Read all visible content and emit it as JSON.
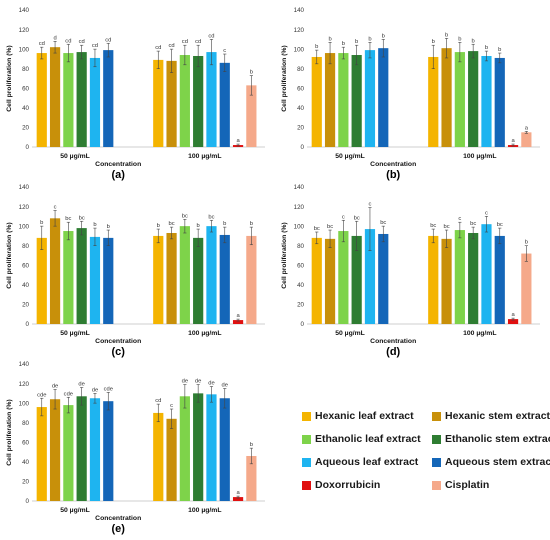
{
  "series": [
    {
      "name": "Hexanic leaf extract",
      "color": "#F4B400"
    },
    {
      "name": "Hexanic stem extract",
      "color": "#C8900A"
    },
    {
      "name": "Ethanolic leaf extract",
      "color": "#7ED34A"
    },
    {
      "name": "Ethanolic stem extract",
      "color": "#2E7D32"
    },
    {
      "name": "Aqueous leaf extract",
      "color": "#1EB4F0"
    },
    {
      "name": "Aqueous stem extract",
      "color": "#1466B8"
    },
    {
      "name": "Doxorrubicin",
      "color": "#E01010"
    },
    {
      "name": "Cisplatin",
      "color": "#F5A98A"
    }
  ],
  "chart_data": [
    {
      "type": "bar",
      "panel_label": "(a)",
      "xlabel": "Concentration",
      "ylabel": "Cell proliferation (%)",
      "ylim": [
        0,
        140
      ],
      "yticks": [
        0,
        20,
        40,
        60,
        80,
        100,
        120,
        140
      ],
      "grid": false,
      "categories": [
        "50 µg/mL",
        "100 µg/mL"
      ],
      "series": [
        {
          "name": "Hexanic leaf extract",
          "values": [
            96,
            89
          ],
          "errors": [
            6,
            9
          ],
          "letters": [
            "cd",
            "cd"
          ]
        },
        {
          "name": "Hexanic stem extract",
          "values": [
            102,
            88
          ],
          "errors": [
            6,
            12
          ],
          "letters": [
            "d",
            "cd"
          ]
        },
        {
          "name": "Ethanolic leaf extract",
          "values": [
            96,
            94
          ],
          "errors": [
            9,
            10
          ],
          "letters": [
            "cd",
            "cd"
          ]
        },
        {
          "name": "Ethanolic stem extract",
          "values": [
            97,
            93
          ],
          "errors": [
            7,
            11
          ],
          "letters": [
            "cd",
            "cd"
          ]
        },
        {
          "name": "Aqueous leaf extract",
          "values": [
            91,
            97
          ],
          "errors": [
            9,
            13
          ],
          "letters": [
            "cd",
            "cd"
          ]
        },
        {
          "name": "Aqueous stem extract",
          "values": [
            99,
            86
          ],
          "errors": [
            7,
            9
          ],
          "letters": [
            "cd",
            "c"
          ]
        },
        {
          "name": "Doxorrubicin",
          "values": [
            null,
            2
          ],
          "errors": [
            null,
            1
          ],
          "letters": [
            "",
            "a"
          ]
        },
        {
          "name": "Cisplatin",
          "values": [
            null,
            63
          ],
          "errors": [
            null,
            10
          ],
          "letters": [
            "",
            "b"
          ]
        }
      ]
    },
    {
      "type": "bar",
      "panel_label": "(b)",
      "xlabel": "Concentration",
      "ylabel": "Cell proliferation (%)",
      "ylim": [
        0,
        140
      ],
      "yticks": [
        0,
        20,
        40,
        60,
        80,
        100,
        120,
        140
      ],
      "grid": false,
      "categories": [
        "50 µg/mL",
        "100 µg/mL"
      ],
      "series": [
        {
          "name": "Hexanic leaf extract",
          "values": [
            92,
            92
          ],
          "errors": [
            7,
            12
          ],
          "letters": [
            "b",
            "b"
          ]
        },
        {
          "name": "Hexanic stem extract",
          "values": [
            96,
            101
          ],
          "errors": [
            11,
            10
          ],
          "letters": [
            "b",
            "b"
          ]
        },
        {
          "name": "Ethanolic leaf extract",
          "values": [
            96,
            97
          ],
          "errors": [
            6,
            10
          ],
          "letters": [
            "b",
            "b"
          ]
        },
        {
          "name": "Ethanolic stem extract",
          "values": [
            94,
            98
          ],
          "errors": [
            10,
            7
          ],
          "letters": [
            "b",
            "b"
          ]
        },
        {
          "name": "Aqueous leaf extract",
          "values": [
            99,
            93
          ],
          "errors": [
            8,
            5
          ],
          "letters": [
            "b",
            "b"
          ]
        },
        {
          "name": "Aqueous stem extract",
          "values": [
            101,
            91
          ],
          "errors": [
            9,
            5
          ],
          "letters": [
            "b",
            "b"
          ]
        },
        {
          "name": "Doxorrubicin",
          "values": [
            null,
            2
          ],
          "errors": [
            null,
            1
          ],
          "letters": [
            "",
            "a"
          ]
        },
        {
          "name": "Cisplatin",
          "values": [
            null,
            15
          ],
          "errors": [
            null,
            1
          ],
          "letters": [
            "",
            "a"
          ]
        }
      ]
    },
    {
      "type": "bar",
      "panel_label": "(c)",
      "xlabel": "Concentration",
      "ylabel": "Cell proliferation (%)",
      "ylim": [
        0,
        140
      ],
      "yticks": [
        0,
        20,
        40,
        60,
        80,
        100,
        120,
        140
      ],
      "grid": false,
      "categories": [
        "50 µg/mL",
        "100 µg/mL"
      ],
      "series": [
        {
          "name": "Hexanic leaf extract",
          "values": [
            88,
            90
          ],
          "errors": [
            12,
            7
          ],
          "letters": [
            "b",
            "b"
          ]
        },
        {
          "name": "Hexanic stem extract",
          "values": [
            108,
            93
          ],
          "errors": [
            8,
            6
          ],
          "letters": [
            "c",
            "bc"
          ]
        },
        {
          "name": "Ethanolic leaf extract",
          "values": [
            95,
            100
          ],
          "errors": [
            9,
            7
          ],
          "letters": [
            "bc",
            "bc"
          ]
        },
        {
          "name": "Ethanolic stem extract",
          "values": [
            98,
            88
          ],
          "errors": [
            7,
            9
          ],
          "letters": [
            "bc",
            "b"
          ]
        },
        {
          "name": "Aqueous leaf extract",
          "values": [
            89,
            100
          ],
          "errors": [
            9,
            6
          ],
          "letters": [
            "b",
            "bc"
          ]
        },
        {
          "name": "Aqueous stem extract",
          "values": [
            88,
            91
          ],
          "errors": [
            8,
            8
          ],
          "letters": [
            "b",
            "b"
          ]
        },
        {
          "name": "Doxorrubicin",
          "values": [
            null,
            4
          ],
          "errors": [
            null,
            1
          ],
          "letters": [
            "",
            "a"
          ]
        },
        {
          "name": "Cisplatin",
          "values": [
            null,
            90
          ],
          "errors": [
            null,
            9
          ],
          "letters": [
            "",
            "b"
          ]
        }
      ]
    },
    {
      "type": "bar",
      "panel_label": "(d)",
      "xlabel": "Concentration",
      "ylabel": "Cell proliferation (%)",
      "ylim": [
        0,
        140
      ],
      "yticks": [
        0,
        20,
        40,
        60,
        80,
        100,
        120,
        140
      ],
      "grid": false,
      "categories": [
        "50 µg/mL",
        "100 µg/mL"
      ],
      "series": [
        {
          "name": "Hexanic leaf extract",
          "values": [
            88,
            90
          ],
          "errors": [
            6,
            7
          ],
          "letters": [
            "bc",
            "bc"
          ]
        },
        {
          "name": "Hexanic stem extract",
          "values": [
            87,
            87
          ],
          "errors": [
            9,
            9
          ],
          "letters": [
            "bc",
            "bc"
          ]
        },
        {
          "name": "Ethanolic leaf extract",
          "values": [
            95,
            96
          ],
          "errors": [
            11,
            8
          ],
          "letters": [
            "c",
            "c"
          ]
        },
        {
          "name": "Ethanolic stem extract",
          "values": [
            90,
            93
          ],
          "errors": [
            15,
            6
          ],
          "letters": [
            "bc",
            "bc"
          ]
        },
        {
          "name": "Aqueous leaf extract",
          "values": [
            97,
            102
          ],
          "errors": [
            22,
            8
          ],
          "letters": [
            "c",
            "c"
          ]
        },
        {
          "name": "Aqueous stem extract",
          "values": [
            92,
            90
          ],
          "errors": [
            8,
            8
          ],
          "letters": [
            "bc",
            "bc"
          ]
        },
        {
          "name": "Doxorrubicin",
          "values": [
            null,
            5
          ],
          "errors": [
            null,
            1
          ],
          "letters": [
            "",
            "a"
          ]
        },
        {
          "name": "Cisplatin",
          "values": [
            null,
            72
          ],
          "errors": [
            null,
            8
          ],
          "letters": [
            "",
            "b"
          ]
        }
      ]
    },
    {
      "type": "bar",
      "panel_label": "(e)",
      "xlabel": "Concentration",
      "ylabel": "Cell proliferation (%)",
      "ylim": [
        0,
        140
      ],
      "yticks": [
        0,
        20,
        40,
        60,
        80,
        100,
        120,
        140
      ],
      "grid": false,
      "categories": [
        "50 µg/mL",
        "100 µg/mL"
      ],
      "series": [
        {
          "name": "Hexanic leaf extract",
          "values": [
            96,
            90
          ],
          "errors": [
            9,
            9
          ],
          "letters": [
            "cde",
            "cd"
          ]
        },
        {
          "name": "Hexanic stem extract",
          "values": [
            104,
            84
          ],
          "errors": [
            10,
            10
          ],
          "letters": [
            "de",
            "c"
          ]
        },
        {
          "name": "Ethanolic leaf extract",
          "values": [
            98,
            107
          ],
          "errors": [
            8,
            12
          ],
          "letters": [
            "cde",
            "de"
          ]
        },
        {
          "name": "Ethanolic stem extract",
          "values": [
            107,
            110
          ],
          "errors": [
            9,
            9
          ],
          "letters": [
            "de",
            "de"
          ]
        },
        {
          "name": "Aqueous leaf extract",
          "values": [
            105,
            109
          ],
          "errors": [
            5,
            8
          ],
          "letters": [
            "de",
            "de"
          ]
        },
        {
          "name": "Aqueous stem extract",
          "values": [
            102,
            105
          ],
          "errors": [
            9,
            10
          ],
          "letters": [
            "cde",
            "de"
          ]
        },
        {
          "name": "Doxorrubicin",
          "values": [
            null,
            4
          ],
          "errors": [
            null,
            1
          ],
          "letters": [
            "",
            "a"
          ]
        },
        {
          "name": "Cisplatin",
          "values": [
            null,
            46
          ],
          "errors": [
            null,
            8
          ],
          "letters": [
            "",
            "b"
          ]
        }
      ]
    }
  ]
}
